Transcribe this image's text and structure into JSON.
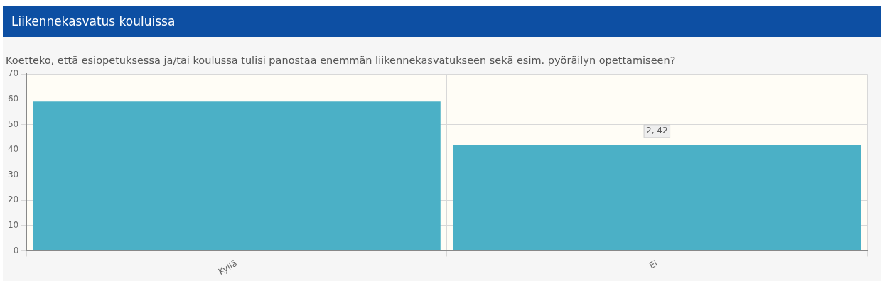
{
  "chart_data": {
    "type": "bar",
    "title": "Liikennekasvatus kouluissa",
    "subtitle": "Koetteko, että esiopetuksessa ja/tai koulussa tulisi panostaa enemmän liikennekasvatukseen sekä esim. pyöräilyn opettamiseen?",
    "categories": [
      "Kyllä",
      "Ei"
    ],
    "values": [
      59,
      42
    ],
    "color": "#4bb0c6",
    "ylim": [
      0,
      70
    ],
    "yticks": [
      0,
      10,
      20,
      30,
      40,
      50,
      60,
      70
    ],
    "grid": true,
    "annotations": [
      {
        "text": "2, 42",
        "x": "Ei",
        "y": 42
      }
    ]
  }
}
